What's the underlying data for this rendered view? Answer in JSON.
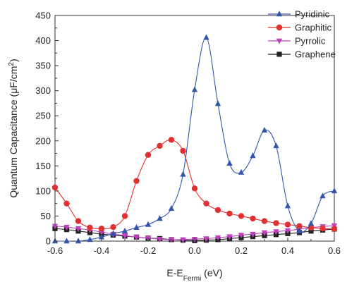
{
  "chart_data": {
    "type": "line",
    "title": "",
    "xlabel_main": "E-E",
    "xlabel_sub": "Fermi",
    "xlabel_unit": " (eV)",
    "ylabel_main": "Quantum Capacitance (",
    "ylabel_mu": "μ",
    "ylabel_unit": "F/cm",
    "ylabel_sup": "2",
    "ylabel_close": ")",
    "xlim": [
      -0.6,
      0.6
    ],
    "ylim": [
      0,
      450
    ],
    "x_ticks": [
      "-0.6",
      "-0.4",
      "-0.2",
      "0.0",
      "0.2",
      "0.4",
      "0.6"
    ],
    "x_tick_values": [
      -0.6,
      -0.4,
      -0.2,
      0.0,
      0.2,
      0.4,
      0.6
    ],
    "y_ticks": [
      "0",
      "50",
      "100",
      "150",
      "200",
      "250",
      "300",
      "350",
      "400",
      "450"
    ],
    "y_tick_values": [
      0,
      50,
      100,
      150,
      200,
      250,
      300,
      350,
      400,
      450
    ],
    "grid": false,
    "legend_position": "top-right",
    "series": [
      {
        "name": "Pyridinic",
        "color": "#3355aa",
        "marker": "triangle-up",
        "x": [
          -0.6,
          -0.55,
          -0.5,
          -0.45,
          -0.4,
          -0.35,
          -0.3,
          -0.25,
          -0.2,
          -0.15,
          -0.1,
          -0.05,
          0.0,
          0.05,
          0.1,
          0.15,
          0.2,
          0.25,
          0.3,
          0.35,
          0.4,
          0.45,
          0.5,
          0.55,
          0.6
        ],
        "y": [
          0,
          0,
          0,
          3,
          8,
          15,
          20,
          27,
          33,
          45,
          65,
          133,
          302,
          406,
          274,
          155,
          137,
          170,
          221,
          190,
          70,
          20,
          35,
          90,
          100
        ]
      },
      {
        "name": "Graphitic",
        "color": "#e03030",
        "marker": "circle",
        "x": [
          -0.6,
          -0.55,
          -0.5,
          -0.45,
          -0.4,
          -0.35,
          -0.3,
          -0.25,
          -0.2,
          -0.15,
          -0.1,
          -0.05,
          0.0,
          0.05,
          0.1,
          0.15,
          0.2,
          0.25,
          0.3,
          0.35,
          0.4,
          0.45,
          0.5,
          0.55,
          0.6
        ],
        "y": [
          107,
          75,
          40,
          27,
          25,
          28,
          50,
          120,
          172,
          190,
          202,
          180,
          105,
          75,
          62,
          55,
          50,
          45,
          40,
          36,
          33,
          30,
          27,
          25,
          24
        ]
      },
      {
        "name": "Pyrrolic",
        "color": "#c040c0",
        "marker": "triangle-down",
        "x": [
          -0.6,
          -0.55,
          -0.5,
          -0.45,
          -0.4,
          -0.35,
          -0.3,
          -0.25,
          -0.2,
          -0.15,
          -0.1,
          -0.05,
          0.0,
          0.05,
          0.1,
          0.15,
          0.2,
          0.25,
          0.3,
          0.35,
          0.4,
          0.45,
          0.5,
          0.55,
          0.6
        ],
        "y": [
          30,
          28,
          25,
          22,
          18,
          14,
          11,
          8,
          6,
          4,
          3,
          3,
          4,
          5,
          7,
          9,
          12,
          14,
          17,
          19,
          21,
          24,
          27,
          29,
          31
        ]
      },
      {
        "name": "Graphene",
        "color": "#222222",
        "marker": "square",
        "x": [
          -0.6,
          -0.55,
          -0.5,
          -0.45,
          -0.4,
          -0.35,
          -0.3,
          -0.25,
          -0.2,
          -0.15,
          -0.1,
          -0.05,
          0.0,
          0.05,
          0.1,
          0.15,
          0.2,
          0.25,
          0.3,
          0.35,
          0.4,
          0.45,
          0.5,
          0.55,
          0.6
        ],
        "y": [
          25,
          23,
          20,
          17,
          14,
          12,
          10,
          8,
          6,
          5,
          3,
          2,
          1,
          2,
          3,
          5,
          7,
          9,
          11,
          13,
          15,
          17,
          20,
          22,
          24
        ]
      }
    ]
  }
}
